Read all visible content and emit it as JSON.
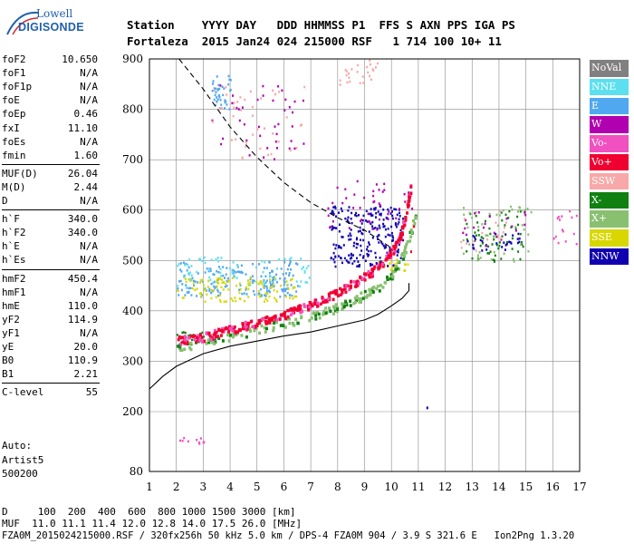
{
  "logo": {
    "line1": "Lowell",
    "line2": "DIGISONDE"
  },
  "header": {
    "row1": "Station    YYYY DAY   DDD HHMMSS P1  FFS S AXN PPS IGA PS",
    "row2": "Fortaleza  2015 Jan24 024 215000 RSF   1 714 100 10+ 11"
  },
  "params": [
    [
      {
        "name": "foF2",
        "value": "10.650"
      },
      {
        "name": "foF1",
        "value": "N/A"
      },
      {
        "name": "foF1p",
        "value": "N/A"
      },
      {
        "name": "foE",
        "value": "N/A"
      },
      {
        "name": "foEp",
        "value": "0.46"
      },
      {
        "name": "fxI",
        "value": "11.10"
      },
      {
        "name": "foEs",
        "value": "N/A"
      },
      {
        "name": "fmin",
        "value": "1.60"
      }
    ],
    [
      {
        "name": "MUF(D)",
        "value": "26.04"
      },
      {
        "name": "M(D)",
        "value": "2.44"
      },
      {
        "name": "D",
        "value": "N/A"
      }
    ],
    [
      {
        "name": "h`F",
        "value": "340.0"
      },
      {
        "name": "h`F2",
        "value": "340.0"
      },
      {
        "name": "h`E",
        "value": "N/A"
      },
      {
        "name": "h`Es",
        "value": "N/A"
      }
    ],
    [
      {
        "name": "hmF2",
        "value": "450.4"
      },
      {
        "name": "hmF1",
        "value": "N/A"
      },
      {
        "name": "hmE",
        "value": "110.0"
      },
      {
        "name": "yF2",
        "value": "114.9"
      },
      {
        "name": "yF1",
        "value": "N/A"
      },
      {
        "name": "yE",
        "value": "20.0"
      },
      {
        "name": "B0",
        "value": "110.9"
      },
      {
        "name": "B1",
        "value": "2.21"
      }
    ],
    [
      {
        "name": "C-level",
        "value": "55"
      }
    ]
  ],
  "auto": {
    "line1": "Auto:",
    "line2": "Artist5",
    "line3": "500200"
  },
  "legend": [
    {
      "label": "NoVal",
      "color": "#808080"
    },
    {
      "label": "NNE",
      "color": "#5ce0f0"
    },
    {
      "label": "E",
      "color": "#50a8f0"
    },
    {
      "label": "W",
      "color": "#b000b0"
    },
    {
      "label": "Vo-",
      "color": "#f050c0"
    },
    {
      "label": "Vo+",
      "color": "#f00030"
    },
    {
      "label": "SSW",
      "color": "#f8a8a8"
    },
    {
      "label": "X-",
      "color": "#108010"
    },
    {
      "label": "X+",
      "color": "#88c070"
    },
    {
      "label": "SSE",
      "color": "#d8d800"
    },
    {
      "label": "NNW",
      "color": "#1000b0"
    }
  ],
  "bottom": {
    "d_row": "D     100  200  400  600  800 1000 1500 3000 [km]",
    "muf_row": "MUF  11.0 11.1 11.4 12.0 12.8 14.0 17.5 26.0 [MHz]",
    "file_row": "FZA0M_2015024215000.RSF / 320fx256h 50 kHz 5.0 km / DPS-4 FZA0M 904 / 3.9 S 321.6 E   Ion2Png 1.3.20"
  },
  "chart_data": {
    "type": "scatter",
    "title": "",
    "xlabel": "",
    "ylabel": "",
    "xlim": [
      1,
      17
    ],
    "ylim": [
      80,
      900
    ],
    "x_ticks": [
      1,
      2,
      3,
      4,
      5,
      6,
      7,
      8,
      9,
      10,
      11,
      12,
      13,
      14,
      15,
      16,
      17
    ],
    "y_ticks": [
      80,
      200,
      300,
      400,
      500,
      600,
      700,
      800,
      900
    ],
    "grid": true,
    "legend_position": "right",
    "clusters": [
      {
        "series": "E",
        "x_range": [
          2.0,
          6.5
        ],
        "y_range": [
          430,
          500
        ],
        "count": 170
      },
      {
        "series": "E",
        "x_range": [
          3.3,
          4.0
        ],
        "y_range": [
          800,
          870
        ],
        "count": 40
      },
      {
        "series": "E",
        "x_range": [
          5.2,
          5.6
        ],
        "y_range": [
          440,
          470
        ],
        "count": 15
      },
      {
        "series": "NNE",
        "x_range": [
          2.0,
          7.0
        ],
        "y_range": [
          445,
          510
        ],
        "count": 70
      },
      {
        "series": "SSE",
        "x_range": [
          2.0,
          6.5
        ],
        "y_range": [
          420,
          470
        ],
        "count": 110
      },
      {
        "series": "SSE",
        "x_range": [
          9.5,
          10.6
        ],
        "y_range": [
          480,
          520
        ],
        "count": 25
      },
      {
        "series": "X-",
        "x_range": [
          2.0,
          3.4
        ],
        "y_range": [
          335,
          360
        ],
        "count": 30
      },
      {
        "series": "X-",
        "x_range": [
          12.7,
          14.9
        ],
        "y_range": [
          500,
          600
        ],
        "count": 60
      },
      {
        "series": "X+",
        "x_range": [
          12.6,
          15.2
        ],
        "y_range": [
          500,
          610
        ],
        "count": 45
      },
      {
        "series": "NNW",
        "x_range": [
          7.7,
          10.4
        ],
        "y_range": [
          490,
          610
        ],
        "count": 220
      },
      {
        "series": "NNW",
        "x_range": [
          12.8,
          14.8
        ],
        "y_range": [
          520,
          560
        ],
        "count": 30
      },
      {
        "series": "W",
        "x_range": [
          7.6,
          10.8
        ],
        "y_range": [
          560,
          660
        ],
        "count": 45
      },
      {
        "series": "W",
        "x_range": [
          3.3,
          6.8
        ],
        "y_range": [
          700,
          850
        ],
        "count": 40
      },
      {
        "series": "W",
        "x_range": [
          12.5,
          15.0
        ],
        "y_range": [
          530,
          600
        ],
        "count": 20
      },
      {
        "series": "SSW",
        "x_range": [
          3.3,
          6.8
        ],
        "y_range": [
          700,
          850
        ],
        "count": 40
      },
      {
        "series": "SSW",
        "x_range": [
          8.0,
          9.5
        ],
        "y_range": [
          850,
          900
        ],
        "count": 25
      },
      {
        "series": "SSW",
        "x_range": [
          12.5,
          14.5
        ],
        "y_range": [
          520,
          600
        ],
        "count": 15
      },
      {
        "series": "Vo-",
        "x_range": [
          2.0,
          3.5
        ],
        "y_range": [
          135,
          150
        ],
        "count": 10
      },
      {
        "series": "Vo-",
        "x_range": [
          16.0,
          17.0
        ],
        "y_range": [
          530,
          600
        ],
        "count": 15
      }
    ],
    "trace_o": {
      "series": "Vo+",
      "x": [
        2.0,
        2.5,
        3.0,
        3.5,
        4.0,
        4.5,
        5.0,
        5.5,
        6.0,
        6.5,
        7.0,
        7.5,
        8.0,
        8.5,
        9.0,
        9.5,
        10.0,
        10.3,
        10.5,
        10.7
      ],
      "y": [
        345,
        345,
        350,
        358,
        365,
        372,
        380,
        388,
        395,
        405,
        415,
        425,
        440,
        455,
        470,
        490,
        520,
        550,
        590,
        650
      ]
    },
    "trace_x": {
      "series": "X+",
      "x": [
        2.0,
        3.0,
        4.0,
        5.0,
        6.0,
        7.0,
        7.5,
        8.0,
        8.5,
        9.0,
        9.5,
        10.0,
        10.3,
        10.6,
        10.9
      ],
      "y": [
        325,
        340,
        352,
        365,
        378,
        392,
        400,
        410,
        420,
        435,
        450,
        475,
        500,
        540,
        600
      ]
    },
    "profile": {
      "x": [
        1.0,
        1.5,
        2.0,
        3.0,
        4.0,
        5.0,
        6.0,
        7.0,
        8.0,
        9.0,
        9.5,
        10.0,
        10.4,
        10.65,
        10.65
      ],
      "y": [
        245,
        270,
        290,
        315,
        330,
        340,
        350,
        358,
        370,
        382,
        393,
        410,
        425,
        440,
        455
      ]
    },
    "muf_curve": {
      "x": [
        2.1,
        3.0,
        4.0,
        5.0,
        6.0,
        7.0,
        8.0,
        9.0,
        10.0
      ],
      "y": [
        900,
        840,
        765,
        705,
        655,
        615,
        585,
        560,
        525
      ]
    },
    "noise": [
      {
        "series": "Vo+",
        "x": [
          10.7,
          10.8
        ],
        "y": [
          520,
          570
        ]
      },
      {
        "series": "NNW",
        "x": [
          11.3
        ],
        "y": [
          210
        ]
      }
    ]
  }
}
